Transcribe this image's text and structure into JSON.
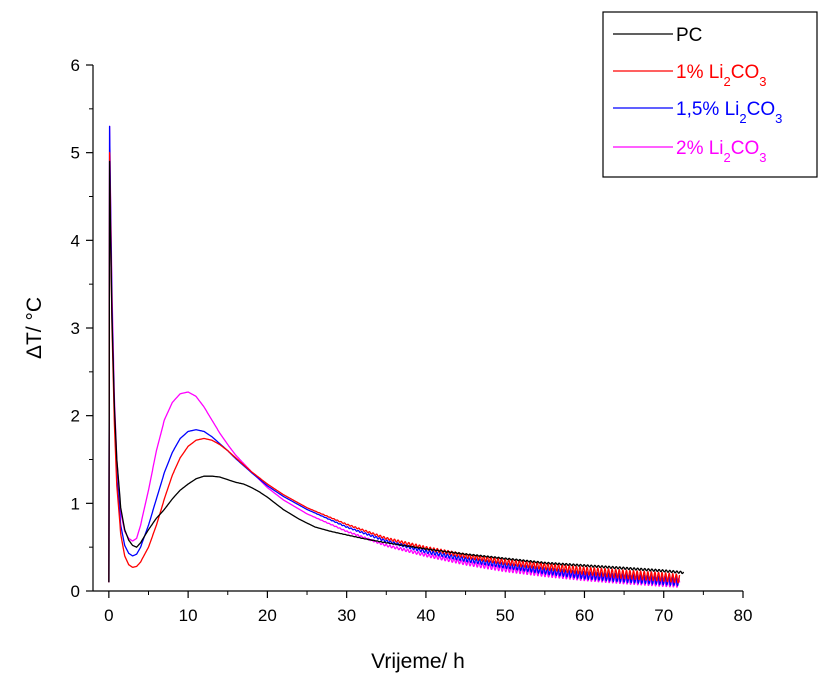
{
  "chart_data": {
    "type": "line",
    "xlabel": "Vrijeme/ h",
    "ylabel": "ΔT/ °C",
    "xlim": [
      -2,
      80
    ],
    "ylim": [
      0,
      6
    ],
    "x_ticks": [
      "0",
      "10",
      "20",
      "30",
      "40",
      "50",
      "60",
      "70",
      "80"
    ],
    "y_ticks": [
      "0",
      "1",
      "2",
      "3",
      "4",
      "5",
      "6"
    ],
    "grid": false,
    "legend_position": "top-right",
    "series": [
      {
        "name": "PC",
        "legend_base": "PC",
        "legend_sub": "",
        "legend_tail": "",
        "color": "#000000",
        "noise_amp": 0.012,
        "x": [
          0,
          0.1,
          0.2,
          0.4,
          0.7,
          1,
          1.5,
          2,
          2.5,
          3,
          3.5,
          4,
          5,
          6,
          7,
          8,
          9,
          10,
          11,
          12,
          13,
          14,
          15,
          16,
          17,
          18,
          19,
          20,
          22,
          24,
          26,
          28,
          30,
          32,
          35,
          40,
          45,
          50,
          55,
          60,
          65,
          70,
          72.5
        ],
        "values": [
          0.1,
          4.9,
          4.2,
          3.1,
          2.1,
          1.5,
          0.95,
          0.7,
          0.58,
          0.52,
          0.5,
          0.55,
          0.7,
          0.83,
          0.93,
          1.05,
          1.15,
          1.22,
          1.28,
          1.31,
          1.31,
          1.3,
          1.27,
          1.24,
          1.22,
          1.18,
          1.13,
          1.07,
          0.93,
          0.82,
          0.73,
          0.68,
          0.64,
          0.6,
          0.55,
          0.48,
          0.42,
          0.37,
          0.32,
          0.29,
          0.26,
          0.23,
          0.21
        ]
      },
      {
        "name": "1% Li2CO3",
        "legend_base": "1% Li",
        "legend_sub": "2",
        "legend_tail": "CO",
        "legend_sub2": "3",
        "color": "#ff0000",
        "noise_amp": 0.05,
        "x": [
          0,
          0.1,
          0.2,
          0.4,
          0.7,
          1,
          1.5,
          2,
          2.5,
          3,
          3.5,
          4,
          5,
          6,
          7,
          8,
          9,
          10,
          11,
          12,
          13,
          14,
          15,
          16,
          17,
          18,
          20,
          22,
          25,
          30,
          35,
          40,
          45,
          50,
          55,
          60,
          65,
          70,
          72
        ],
        "values": [
          0.1,
          5.0,
          4.3,
          3.0,
          1.9,
          1.2,
          0.65,
          0.4,
          0.3,
          0.27,
          0.28,
          0.33,
          0.5,
          0.75,
          1.05,
          1.32,
          1.52,
          1.65,
          1.72,
          1.74,
          1.72,
          1.67,
          1.6,
          1.52,
          1.44,
          1.36,
          1.22,
          1.1,
          0.95,
          0.76,
          0.6,
          0.49,
          0.4,
          0.33,
          0.28,
          0.23,
          0.19,
          0.16,
          0.14
        ]
      },
      {
        "name": "1,5% Li2CO3",
        "legend_base": "1,5% Li",
        "legend_sub": "2",
        "legend_tail": "CO",
        "legend_sub2": "3",
        "color": "#0000ff",
        "noise_amp": 0.05,
        "x": [
          0,
          0.1,
          0.2,
          0.4,
          0.7,
          1,
          1.5,
          2,
          2.5,
          3,
          3.5,
          4,
          5,
          6,
          7,
          8,
          9,
          10,
          11,
          12,
          13,
          14,
          15,
          16,
          18,
          20,
          22,
          25,
          30,
          35,
          40,
          45,
          50,
          55,
          60,
          65,
          70,
          72
        ],
        "values": [
          0.1,
          5.3,
          4.5,
          3.2,
          2.0,
          1.3,
          0.75,
          0.52,
          0.43,
          0.4,
          0.42,
          0.5,
          0.75,
          1.05,
          1.35,
          1.58,
          1.74,
          1.82,
          1.84,
          1.82,
          1.76,
          1.68,
          1.6,
          1.51,
          1.35,
          1.2,
          1.08,
          0.93,
          0.73,
          0.57,
          0.45,
          0.36,
          0.29,
          0.23,
          0.18,
          0.15,
          0.12,
          0.11
        ]
      },
      {
        "name": "2% Li2CO3",
        "legend_base": "2% Li",
        "legend_sub": "2",
        "legend_tail": "CO",
        "legend_sub2": "3",
        "color": "#ff00ff",
        "noise_amp": 0.05,
        "x": [
          0,
          0.1,
          0.2,
          0.4,
          0.7,
          1,
          1.5,
          2,
          2.5,
          3,
          3.5,
          4,
          5,
          6,
          7,
          8,
          9,
          10,
          11,
          12,
          13,
          14,
          15,
          16,
          18,
          20,
          22,
          25,
          30,
          35,
          40,
          45,
          50,
          55,
          60,
          65,
          70,
          72
        ],
        "values": [
          0.1,
          5.3,
          4.6,
          3.4,
          2.2,
          1.5,
          0.9,
          0.68,
          0.6,
          0.57,
          0.6,
          0.75,
          1.15,
          1.6,
          1.95,
          2.15,
          2.25,
          2.27,
          2.22,
          2.1,
          1.95,
          1.8,
          1.67,
          1.55,
          1.36,
          1.18,
          1.04,
          0.88,
          0.68,
          0.52,
          0.41,
          0.32,
          0.25,
          0.2,
          0.16,
          0.13,
          0.1,
          0.09
        ]
      }
    ]
  }
}
